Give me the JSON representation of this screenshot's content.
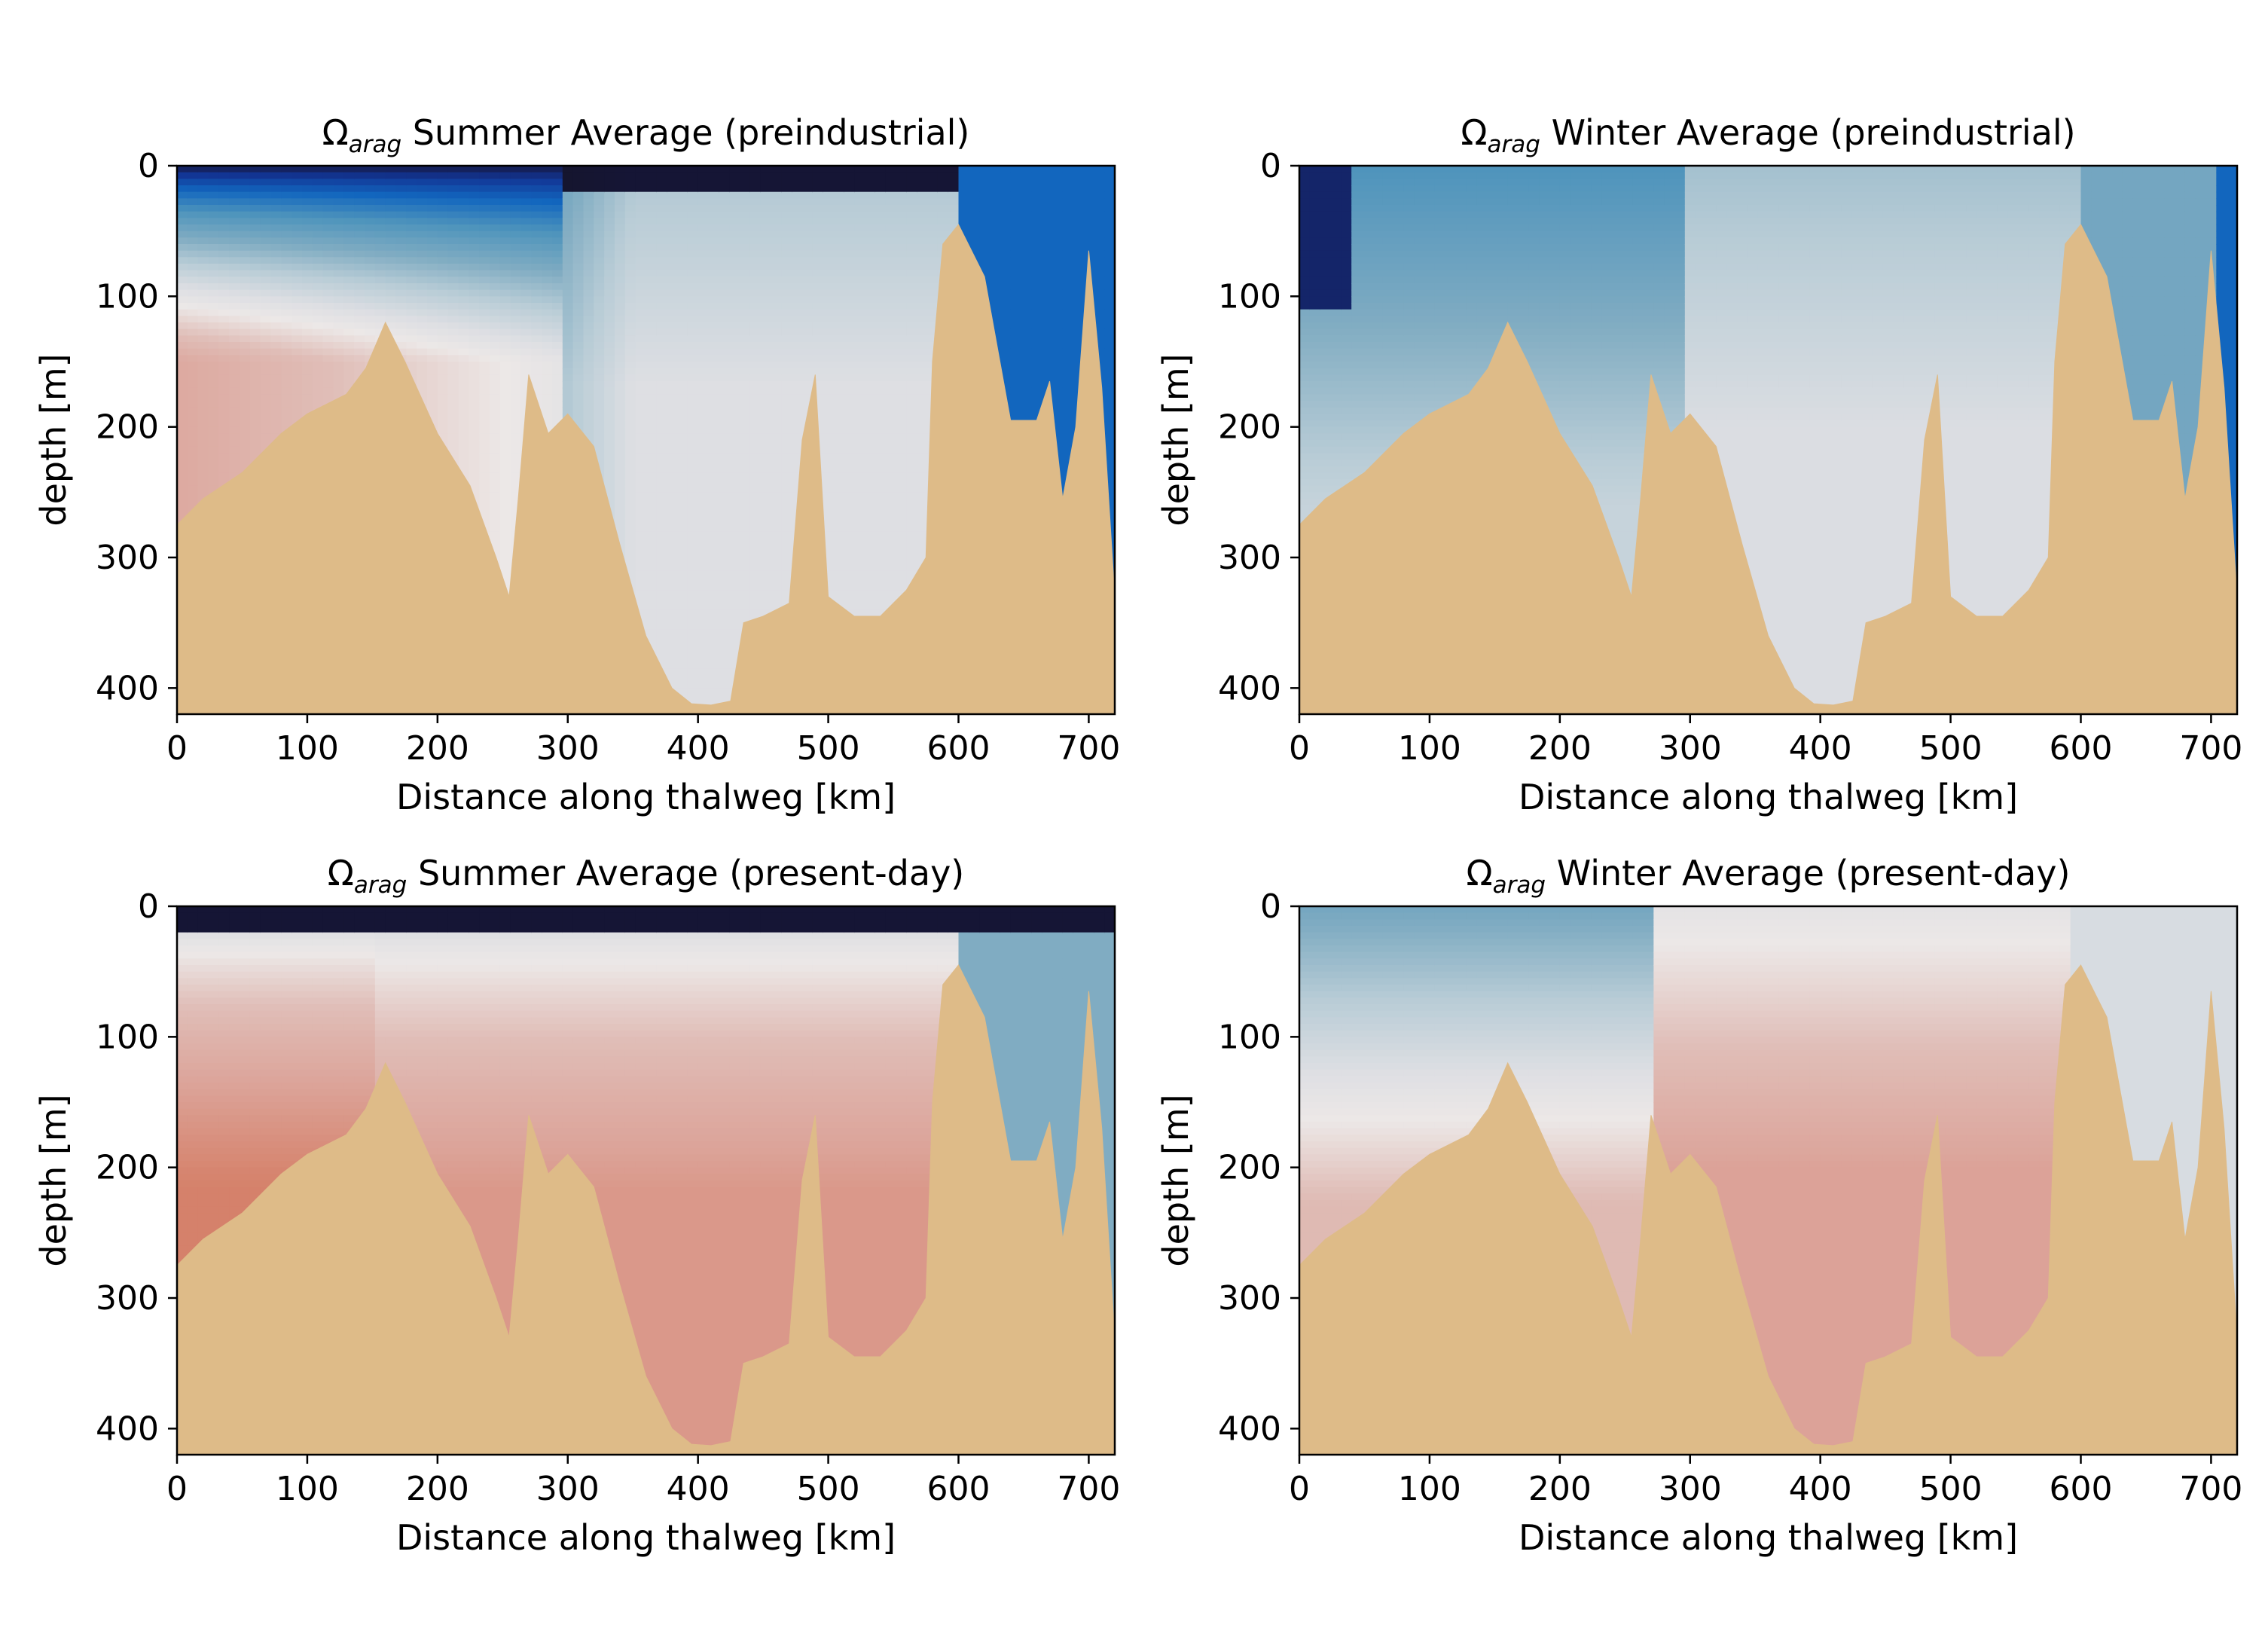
{
  "figure": {
    "colors": {
      "seafloor": "#debb88",
      "background": "#ffffff",
      "colormap_low": "#15152e",
      "colormap_mid": "#eae8e8",
      "colormap_high": "#d27f64"
    }
  },
  "chart_data": [
    {
      "type": "heatmap",
      "title_symbol": "Ω",
      "title_subscript": "arag",
      "title_text": "Summer Average (preindustrial)",
      "xlabel": "Distance along thalweg [km]",
      "ylabel": "depth [m]",
      "xlim": [
        0,
        720
      ],
      "ylim": [
        420,
        0
      ],
      "xticks": [
        "0",
        "100",
        "200",
        "300",
        "400",
        "500",
        "600",
        "700"
      ],
      "yticks": [
        "0",
        "100",
        "200",
        "300",
        "400"
      ],
      "surface_value": 0.3,
      "deep_value": 1.25,
      "legend": "none",
      "grid": false,
      "seafloor_profile": {
        "x": [
          0,
          20,
          50,
          80,
          100,
          130,
          145,
          160,
          175,
          200,
          225,
          245,
          255,
          262,
          270,
          285,
          300,
          320,
          340,
          360,
          380,
          395,
          410,
          425,
          435,
          450,
          470,
          480,
          490,
          500,
          520,
          540,
          560,
          575,
          580,
          588,
          600,
          620,
          640,
          660,
          670,
          680,
          690,
          700,
          710,
          720
        ],
        "depth": [
          275,
          255,
          235,
          205,
          190,
          175,
          155,
          120,
          150,
          205,
          245,
          300,
          330,
          255,
          160,
          205,
          190,
          215,
          290,
          360,
          400,
          412,
          413,
          410,
          350,
          345,
          335,
          210,
          160,
          330,
          345,
          345,
          325,
          300,
          150,
          60,
          45,
          85,
          195,
          195,
          165,
          255,
          200,
          65,
          170,
          330
        ]
      }
    },
    {
      "type": "heatmap",
      "title_symbol": "Ω",
      "title_subscript": "arag",
      "title_text": "Winter Average (preindustrial)",
      "xlabel": "Distance along thalweg [km]",
      "ylabel": "depth [m]",
      "xlim": [
        0,
        720
      ],
      "ylim": [
        420,
        0
      ],
      "xticks": [
        "0",
        "100",
        "200",
        "300",
        "400",
        "500",
        "600",
        "700"
      ],
      "yticks": [
        "0",
        "100",
        "200",
        "300",
        "400"
      ],
      "surface_value": 0.62,
      "deep_value": 0.98,
      "legend": "none",
      "grid": false,
      "seafloor_profile": {
        "x": [
          0,
          20,
          50,
          80,
          100,
          130,
          145,
          160,
          175,
          200,
          225,
          245,
          255,
          262,
          270,
          285,
          300,
          320,
          340,
          360,
          380,
          395,
          410,
          425,
          435,
          450,
          470,
          480,
          490,
          500,
          520,
          540,
          560,
          575,
          580,
          588,
          600,
          620,
          640,
          660,
          670,
          680,
          690,
          700,
          710,
          720
        ],
        "depth": [
          275,
          255,
          235,
          205,
          190,
          175,
          155,
          120,
          150,
          205,
          245,
          300,
          330,
          255,
          160,
          205,
          190,
          215,
          290,
          360,
          400,
          412,
          413,
          410,
          350,
          345,
          335,
          210,
          160,
          330,
          345,
          345,
          325,
          300,
          150,
          60,
          45,
          85,
          195,
          195,
          165,
          255,
          200,
          65,
          170,
          330
        ]
      }
    },
    {
      "type": "heatmap",
      "title_symbol": "Ω",
      "title_subscript": "arag",
      "title_text": "Summer Average (present-day)",
      "xlabel": "Distance along thalweg [km]",
      "ylabel": "depth [m]",
      "xlim": [
        0,
        720
      ],
      "ylim": [
        420,
        0
      ],
      "xticks": [
        "0",
        "100",
        "200",
        "300",
        "400",
        "500",
        "600",
        "700"
      ],
      "yticks": [
        "0",
        "100",
        "200",
        "300",
        "400"
      ],
      "surface_value": 0.3,
      "deep_value": 1.45,
      "legend": "none",
      "grid": false,
      "seafloor_profile": {
        "x": [
          0,
          20,
          50,
          80,
          100,
          130,
          145,
          160,
          175,
          200,
          225,
          245,
          255,
          262,
          270,
          285,
          300,
          320,
          340,
          360,
          380,
          395,
          410,
          425,
          435,
          450,
          470,
          480,
          490,
          500,
          520,
          540,
          560,
          575,
          580,
          588,
          600,
          620,
          640,
          660,
          670,
          680,
          690,
          700,
          710,
          720
        ],
        "depth": [
          275,
          255,
          235,
          205,
          190,
          175,
          155,
          120,
          150,
          205,
          245,
          300,
          330,
          255,
          160,
          205,
          190,
          215,
          290,
          360,
          400,
          412,
          413,
          410,
          350,
          345,
          335,
          210,
          160,
          330,
          345,
          345,
          325,
          300,
          150,
          60,
          45,
          85,
          195,
          195,
          165,
          255,
          200,
          65,
          170,
          330
        ]
      }
    },
    {
      "type": "heatmap",
      "title_symbol": "Ω",
      "title_subscript": "arag",
      "title_text": "Winter Average (present-day)",
      "xlabel": "Distance along thalweg [km]",
      "ylabel": "depth [m]",
      "xlim": [
        0,
        720
      ],
      "ylim": [
        420,
        0
      ],
      "xticks": [
        "0",
        "100",
        "200",
        "300",
        "400",
        "500",
        "600",
        "700"
      ],
      "yticks": [
        "0",
        "100",
        "200",
        "300",
        "400"
      ],
      "surface_value": 0.75,
      "deep_value": 1.3,
      "legend": "none",
      "grid": false,
      "seafloor_profile": {
        "x": [
          0,
          20,
          50,
          80,
          100,
          130,
          145,
          160,
          175,
          200,
          225,
          245,
          255,
          262,
          270,
          285,
          300,
          320,
          340,
          360,
          380,
          395,
          410,
          425,
          435,
          450,
          470,
          480,
          490,
          500,
          520,
          540,
          560,
          575,
          580,
          588,
          600,
          620,
          640,
          660,
          670,
          680,
          690,
          700,
          710,
          720
        ],
        "depth": [
          275,
          255,
          235,
          205,
          190,
          175,
          155,
          120,
          150,
          205,
          245,
          300,
          330,
          255,
          160,
          205,
          190,
          215,
          290,
          360,
          400,
          412,
          413,
          410,
          350,
          345,
          335,
          210,
          160,
          330,
          345,
          345,
          325,
          300,
          150,
          60,
          45,
          85,
          195,
          195,
          165,
          255,
          200,
          65,
          170,
          330
        ]
      }
    }
  ]
}
